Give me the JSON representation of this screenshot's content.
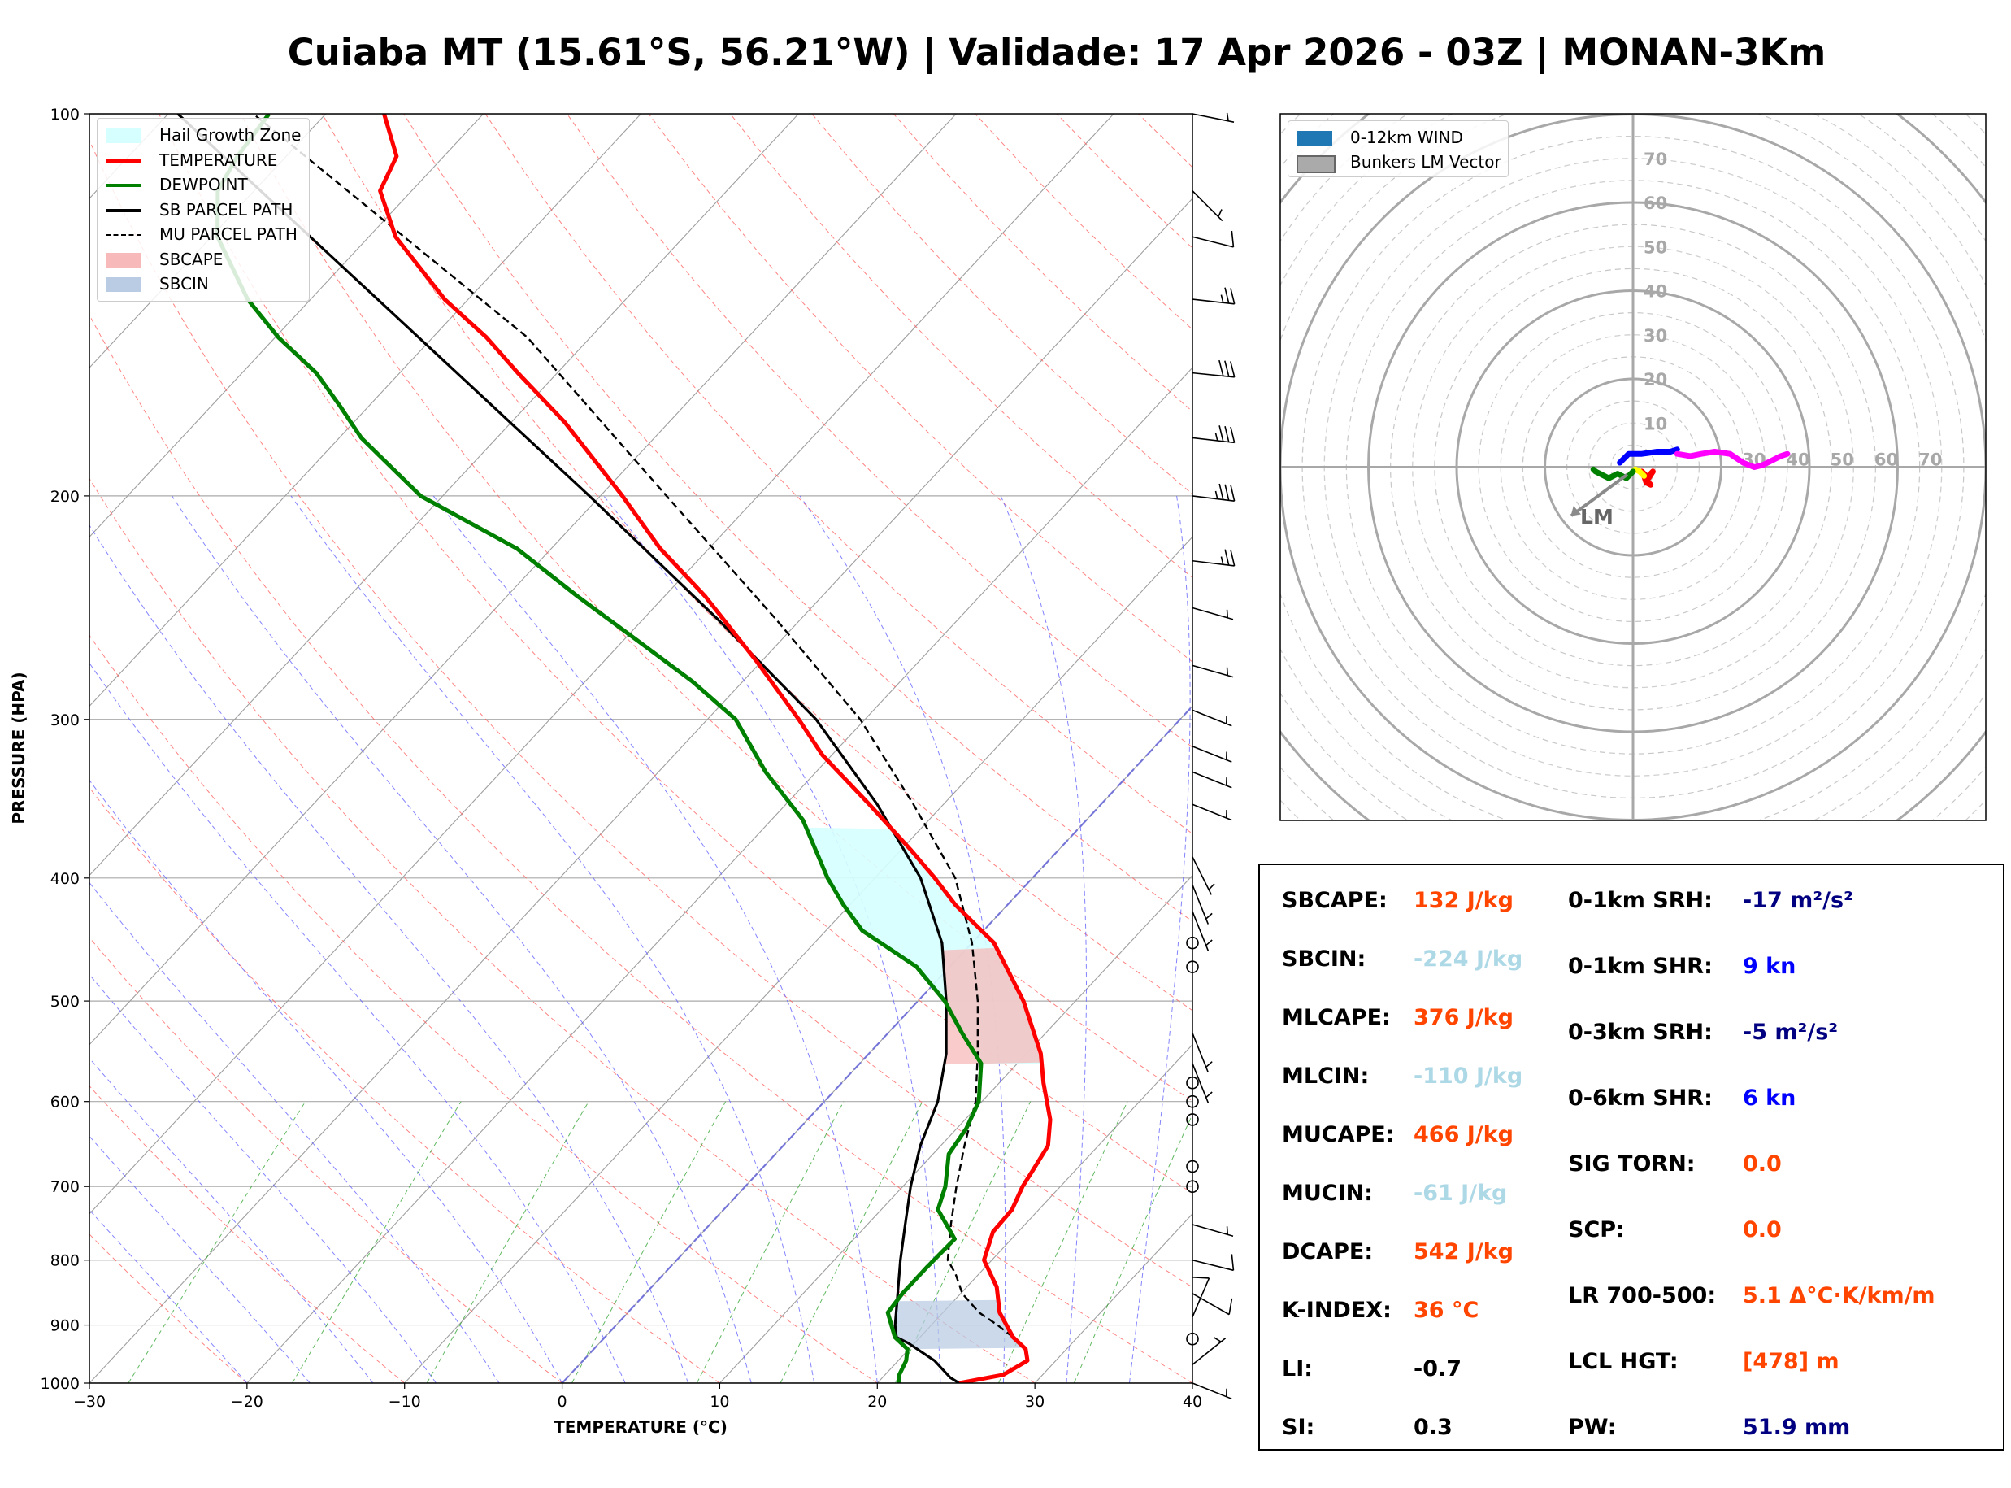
{
  "title": "Cuiaba MT (15.61°S, 56.21°W) | Validade: 17 Apr 2026 - 03Z | MONAN-3Km",
  "skewt": {
    "xlabel": "TEMPERATURE (°C)",
    "ylabel": "PRESSURE (HPA)",
    "x_ticks": [
      "−30",
      "−20",
      "−10",
      "0",
      "10",
      "20",
      "30",
      "40"
    ],
    "y_ticks": [
      "100",
      "200",
      "300",
      "400",
      "500",
      "600",
      "700",
      "800",
      "900",
      "1000"
    ],
    "legend": [
      {
        "label": "Hail Growth Zone",
        "color": "#d6ffff",
        "style": "fill"
      },
      {
        "label": "TEMPERATURE",
        "color": "#ff0000",
        "style": "line"
      },
      {
        "label": "DEWPOINT",
        "color": "#008000",
        "style": "line"
      },
      {
        "label": "SB PARCEL PATH",
        "color": "#000000",
        "style": "line"
      },
      {
        "label": "MU PARCEL PATH",
        "color": "#000000",
        "style": "dash"
      },
      {
        "label": "SBCAPE",
        "color": "#f7b9b9",
        "style": "fill"
      },
      {
        "label": "SBCIN",
        "color": "#b9cce3",
        "style": "fill"
      }
    ]
  },
  "hodograph": {
    "legend": [
      {
        "label": "0-12km WIND",
        "color": "#1f77b4"
      },
      {
        "label": "Bunkers LM Vector",
        "color": "#aaaaaa"
      }
    ],
    "ring_labels": [
      "10",
      "20",
      "30",
      "40",
      "50",
      "60",
      "70"
    ],
    "lm_label": "LM"
  },
  "indices": {
    "left": [
      {
        "label": "SBCAPE:",
        "value": "132 J/kg",
        "color": "#ff4500"
      },
      {
        "label": "SBCIN:",
        "value": "-224 J/kg",
        "color": "#add8e6"
      },
      {
        "label": "MLCAPE:",
        "value": "376 J/kg",
        "color": "#ff4500"
      },
      {
        "label": "MLCIN:",
        "value": "-110 J/kg",
        "color": "#add8e6"
      },
      {
        "label": "MUCAPE:",
        "value": "466 J/kg",
        "color": "#ff4500"
      },
      {
        "label": "MUCIN:",
        "value": "-61 J/kg",
        "color": "#add8e6"
      },
      {
        "label": "DCAPE:",
        "value": "542 J/kg",
        "color": "#ff4500"
      },
      {
        "label": "K-INDEX:",
        "value": "36 °C",
        "color": "#ff4500"
      },
      {
        "label": "LI:",
        "value": "-0.7",
        "color": "#000000"
      },
      {
        "label": "SI:",
        "value": "0.3",
        "color": "#000000"
      }
    ],
    "right": [
      {
        "label": "0-1km SRH:",
        "value": "-17 m²/s²",
        "color": "#000080"
      },
      {
        "label": "0-1km SHR:",
        "value": "9 kn",
        "color": "#0000ff"
      },
      {
        "label": "0-3km SRH:",
        "value": "-5 m²/s²",
        "color": "#000080"
      },
      {
        "label": "0-6km SHR:",
        "value": "6 kn",
        "color": "#0000ff"
      },
      {
        "label": "SIG TORN:",
        "value": "0.0",
        "color": "#ff4500"
      },
      {
        "label": "SCP:",
        "value": "0.0",
        "color": "#ff4500"
      },
      {
        "label": "LR 700-500:",
        "value": "5.1 Δ°C·K/km/m",
        "color": "#ff4500"
      },
      {
        "label": "LCL HGT:",
        "value": "[478] m",
        "color": "#ff4500"
      },
      {
        "label": "PW:",
        "value": "51.9 mm",
        "color": "#000080"
      }
    ]
  },
  "chart_data": [
    {
      "type": "line",
      "name": "skew-t",
      "title": "Cuiaba MT (15.61°S, 56.21°W) | Validade: 17 Apr 2026 - 03Z | MONAN-3Km",
      "xlabel": "TEMPERATURE (°C)",
      "ylabel": "PRESSURE (HPA)",
      "xlim": [
        -30,
        40
      ],
      "ylim": [
        1000,
        100
      ],
      "yscale": "log",
      "skew_degrees_per_decade": 75,
      "series": [
        {
          "name": "TEMPERATURE",
          "p": [
            1000,
            985,
            960,
            940,
            920,
            880,
            840,
            800,
            760,
            730,
            700,
            680,
            650,
            620,
            580,
            550,
            500,
            450,
            420,
            400,
            380,
            350,
            320,
            300,
            270,
            240,
            220,
            200,
            175,
            160,
            150,
            140,
            125,
            115,
            108,
            100
          ],
          "t": [
            25.2,
            27.5,
            28.2,
            27.4,
            25.9,
            23.6,
            21.9,
            19.5,
            18.4,
            18.3,
            17.6,
            17.3,
            16.8,
            15.4,
            12.8,
            10.9,
            6.7,
            1.4,
            -3.3,
            -6.2,
            -9.4,
            -14.7,
            -20.6,
            -24.2,
            -30.3,
            -37.4,
            -43.1,
            -48.6,
            -56.6,
            -62.5,
            -66.6,
            -71.5,
            -78.3,
            -82.0,
            -83.0,
            -86.3
          ]
        },
        {
          "name": "DEWPOINT",
          "p": [
            1000,
            985,
            960,
            940,
            920,
            880,
            850,
            810,
            770,
            730,
            700,
            660,
            630,
            600,
            560,
            530,
            500,
            470,
            440,
            420,
            400,
            360,
            330,
            300,
            280,
            260,
            240,
            220,
            200,
            180,
            170,
            160,
            150,
            140,
            125,
            115,
            108,
            100
          ],
          "t": [
            21.4,
            20.9,
            20.5,
            19.9,
            18.4,
            16.5,
            16.3,
            16.3,
            16.4,
            13.6,
            12.7,
            11.0,
            10.6,
            9.8,
            7.7,
            4.7,
            1.7,
            -2.1,
            -7.7,
            -10.4,
            -13.0,
            -18.0,
            -23.2,
            -28.2,
            -33.2,
            -39.1,
            -45.5,
            -52.2,
            -61.4,
            -68.6,
            -71.8,
            -75.3,
            -79.8,
            -84.0,
            -89.6,
            -92.3,
            -93.1,
            -93.6
          ]
        },
        {
          "name": "SB PARCEL PATH",
          "p": [
            1000,
            990,
            960,
            930,
            920,
            900,
            850,
            800,
            750,
            700,
            650,
            600,
            550,
            500,
            450,
            400,
            350,
            300,
            250,
            200,
            150,
            100
          ],
          "t": [
            25.2,
            24.3,
            22.3,
            19.6,
            18.5,
            17.7,
            16.0,
            14.2,
            12.4,
            10.5,
            8.7,
            7.2,
            4.9,
            1.8,
            -1.9,
            -7.1,
            -14.2,
            -23.1,
            -35.3,
            -50.7,
            -70.9,
            -99.4
          ]
        },
        {
          "name": "MU PARCEL PATH",
          "p": [
            1000,
            985,
            960,
            940,
            920,
            900,
            880,
            850,
            820,
            800,
            750,
            700,
            650,
            600,
            550,
            500,
            450,
            400,
            350,
            300,
            250,
            200,
            150,
            100
          ],
          "t": [
            25.2,
            27.5,
            28.2,
            27.4,
            25.9,
            24.2,
            22.3,
            20.1,
            18.5,
            17.2,
            15.3,
            13.4,
            11.5,
            9.6,
            6.9,
            3.8,
            0.0,
            -4.9,
            -11.9,
            -20.3,
            -31.6,
            -45.8,
            -64.0,
            -94.6
          ]
        }
      ],
      "shading": [
        {
          "name": "Hail Growth Zone",
          "p_range": [
            561,
            365
          ]
        },
        {
          "name": "SBCAPE",
          "p_range": [
            561,
            454
          ]
        },
        {
          "name": "SBCIN",
          "p_range": [
            940,
            860
          ]
        }
      ],
      "wind_barbs_kt": [
        {
          "p": 1000,
          "u": -5,
          "v": 2
        },
        {
          "p": 967,
          "u": -5,
          "v": -4
        },
        {
          "p": 923,
          "u": 0,
          "v": 0
        },
        {
          "p": 887,
          "u": -3,
          "v": -7
        },
        {
          "p": 850,
          "u": -7,
          "v": 4
        },
        {
          "p": 800,
          "u": -8,
          "v": 2
        },
        {
          "p": 750,
          "u": -7,
          "v": 2
        },
        {
          "p": 700,
          "u": 0,
          "v": 0
        },
        {
          "p": 675,
          "u": 0,
          "v": 0
        },
        {
          "p": 620,
          "u": 0,
          "v": 0
        },
        {
          "p": 600,
          "u": 0,
          "v": 0
        },
        {
          "p": 580,
          "u": 0,
          "v": 0
        },
        {
          "p": 560,
          "u": -2,
          "v": 5
        },
        {
          "p": 530,
          "u": -2,
          "v": 5
        },
        {
          "p": 470,
          "u": 0,
          "v": 0
        },
        {
          "p": 450,
          "u": 0,
          "v": 0
        },
        {
          "p": 425,
          "u": -2,
          "v": 5
        },
        {
          "p": 405,
          "u": -2,
          "v": 5
        },
        {
          "p": 385,
          "u": -2,
          "v": 4
        },
        {
          "p": 350,
          "u": -5,
          "v": 2
        },
        {
          "p": 330,
          "u": -5,
          "v": 2
        },
        {
          "p": 315,
          "u": -5,
          "v": 2
        },
        {
          "p": 295,
          "u": -5,
          "v": 2
        },
        {
          "p": 272,
          "u": -7,
          "v": 2
        },
        {
          "p": 245,
          "u": -7,
          "v": 2
        },
        {
          "p": 225,
          "u": -25,
          "v": 3
        },
        {
          "p": 200,
          "u": -33,
          "v": 4
        },
        {
          "p": 180,
          "u": -35,
          "v": 4
        },
        {
          "p": 160,
          "u": -30,
          "v": 3
        },
        {
          "p": 140,
          "u": -27,
          "v": 3
        },
        {
          "p": 125,
          "u": -8,
          "v": 2
        },
        {
          "p": 115,
          "u": -5,
          "v": 5
        },
        {
          "p": 100,
          "u": -5,
          "v": 1
        }
      ]
    },
    {
      "type": "line",
      "name": "hodograph",
      "legend": [
        "0-12km WIND",
        "Bunkers LM Vector"
      ],
      "rings": [
        10,
        20,
        30,
        40,
        50,
        60,
        70
      ],
      "xlim": [
        -80,
        80
      ],
      "ylim": [
        -80,
        80
      ],
      "series": [
        {
          "name": "0-1km",
          "color": "#ff0000",
          "u": [
            2.0,
            3.5,
            4.5,
            3.5,
            3.0,
            4.0,
            3.0,
            2.5
          ],
          "v": [
            -1.0,
            -2.5,
            -1.0,
            -2.0,
            -3.0,
            -4.0,
            -3.5,
            -2.0
          ]
        },
        {
          "name": "1-3km",
          "color": "#ffff00",
          "u": [
            2.5,
            1.5,
            0.5,
            0.0
          ],
          "v": [
            -2.0,
            -1.0,
            -0.5,
            -1.0
          ]
        },
        {
          "name": "3-6km",
          "color": "#008000",
          "u": [
            0.0,
            -1.5,
            -3.5,
            -5.5,
            -8.5,
            -9.0
          ],
          "v": [
            -1.0,
            -2.5,
            -1.5,
            -2.5,
            -1.0,
            -0.5
          ]
        },
        {
          "name": "6-9km",
          "color": "#0000ff",
          "u": [
            -3.0,
            -1.0,
            2.0,
            5.5,
            8.5,
            10.0
          ],
          "v": [
            1.0,
            3.0,
            3.0,
            3.5,
            3.5,
            4.0
          ]
        },
        {
          "name": "9-12km",
          "color": "#ff00ff",
          "u": [
            10.0,
            13.0,
            15.5,
            18.5,
            22.0,
            25.0,
            27.5,
            29.5,
            31.5,
            33.5,
            35.0
          ],
          "v": [
            3.0,
            2.5,
            3.0,
            3.5,
            3.0,
            1.0,
            0.0,
            0.5,
            1.5,
            2.5,
            3.0
          ]
        }
      ],
      "bunkers_lm": {
        "u": -14,
        "v": -11
      }
    }
  ]
}
